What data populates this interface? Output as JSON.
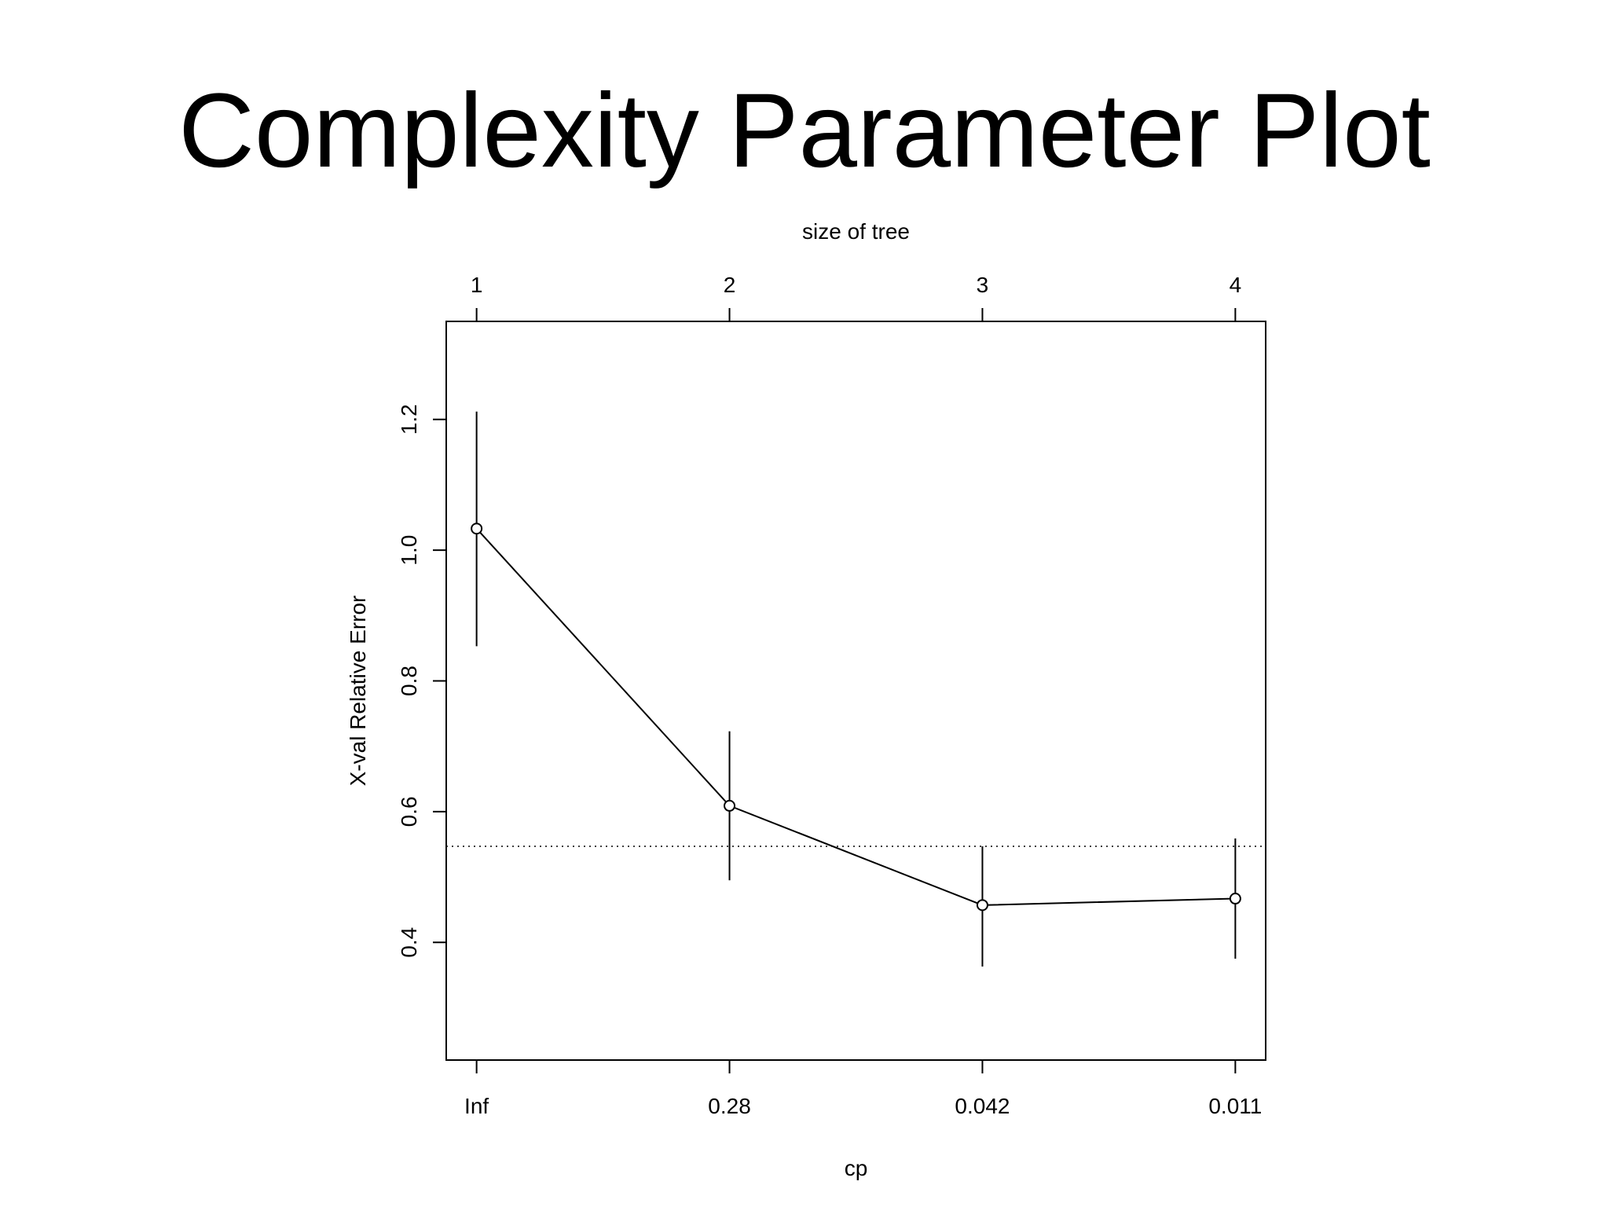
{
  "page": {
    "title": "Complexity Parameter Plot"
  },
  "chart_data": {
    "type": "line",
    "title": "Complexity Parameter Plot",
    "xlabel": "cp",
    "top_xlabel": "size of tree",
    "ylabel": "X-val Relative Error",
    "x_positions": [
      1,
      2,
      3,
      4
    ],
    "categories": [
      "Inf",
      "0.28",
      "0.042",
      "0.011"
    ],
    "top_categories": [
      "1",
      "2",
      "3",
      "4"
    ],
    "xlim": [
      0.88,
      4.12
    ],
    "ylim": [
      0.22,
      1.35
    ],
    "yticks": [
      0.4,
      0.6,
      0.8,
      1.0,
      1.2
    ],
    "ytick_labels": [
      "0.4",
      "0.6",
      "0.8",
      "1.0",
      "1.2"
    ],
    "series": [
      {
        "values": [
          1.033,
          0.609,
          0.457,
          0.467
        ],
        "error_lower": [
          0.853,
          0.495,
          0.363,
          0.375
        ],
        "error_upper": [
          1.212,
          0.723,
          0.547,
          0.559
        ]
      }
    ],
    "reference_line": {
      "y": 0.547,
      "style": "dotted"
    },
    "grid": false,
    "legend": "none",
    "colors": {
      "line": "#000000",
      "background": "#ffffff"
    }
  }
}
